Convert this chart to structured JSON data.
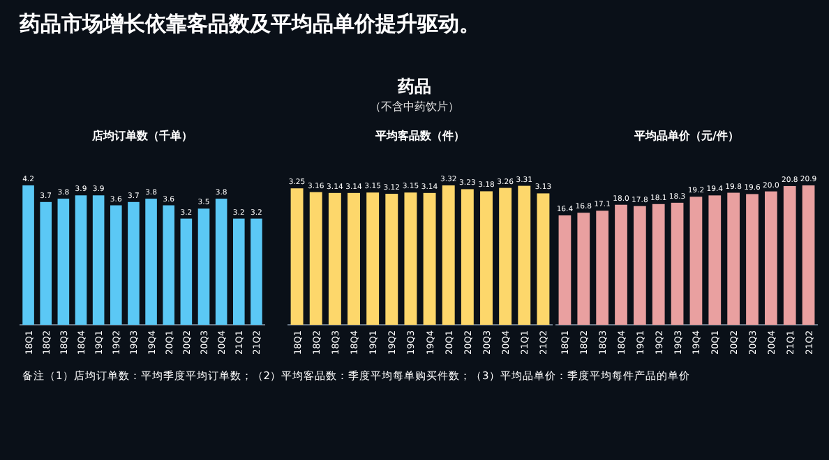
{
  "chart_data": [
    {
      "type": "other",
      "title": "药品市场增长依靠客品数及平均品单价提升驱动。",
      "subtitle": "药品",
      "annotations": [
        "（不含中药饮片）",
        "备注（1）店均订单数：平均季度平均订单数；（2）平均客品数：季度平均每单购买件数；（3）平均品单价：季度平均每件产品的单价"
      ]
    },
    {
      "type": "bar",
      "title": "店均订单数（千单）",
      "data_labels": true,
      "color": "#5bc8f5",
      "categories": [
        "18Q1",
        "18Q2",
        "18Q3",
        "18Q4",
        "19Q1",
        "19Q2",
        "19Q3",
        "19Q4",
        "20Q1",
        "20Q2",
        "20Q3",
        "20Q4",
        "21Q1",
        "21Q2"
      ],
      "values": [
        4.2,
        3.7,
        3.8,
        3.9,
        3.9,
        3.6,
        3.7,
        3.8,
        3.6,
        3.2,
        3.5,
        3.8,
        3.2,
        3.2
      ]
    },
    {
      "type": "bar",
      "title": "平均客品数（件）",
      "data_labels": true,
      "color": "#fdd76b",
      "categories": [
        "18Q1",
        "18Q2",
        "18Q3",
        "18Q4",
        "19Q1",
        "19Q2",
        "19Q3",
        "19Q4",
        "20Q1",
        "20Q2",
        "20Q3",
        "20Q4",
        "21Q1",
        "21Q2"
      ],
      "values": [
        3.25,
        3.16,
        3.14,
        3.14,
        3.15,
        3.12,
        3.15,
        3.14,
        3.32,
        3.23,
        3.18,
        3.26,
        3.31,
        3.13
      ]
    },
    {
      "type": "bar",
      "title": "平均品单价（元/件）",
      "color": "#e9a0a0",
      "value_labels": [
        "16.4",
        "16.8",
        "17.1",
        "18.0",
        "17.8",
        "18.1",
        "18.3",
        "19.2",
        "19.4",
        "19.8",
        "19.6",
        "20.0",
        "20.8",
        "20.9"
      ],
      "categories": [
        "18Q1",
        "18Q2",
        "18Q3",
        "18Q4",
        "19Q1",
        "19Q2",
        "19Q3",
        "19Q4",
        "20Q1",
        "20Q2",
        "20Q3",
        "20Q4",
        "21Q1",
        "21Q2"
      ],
      "values": [
        16.4,
        16.8,
        17.1,
        18.0,
        17.8,
        18.1,
        18.3,
        19.2,
        19.4,
        19.8,
        19.6,
        20.0,
        20.8,
        20.9
      ]
    }
  ]
}
